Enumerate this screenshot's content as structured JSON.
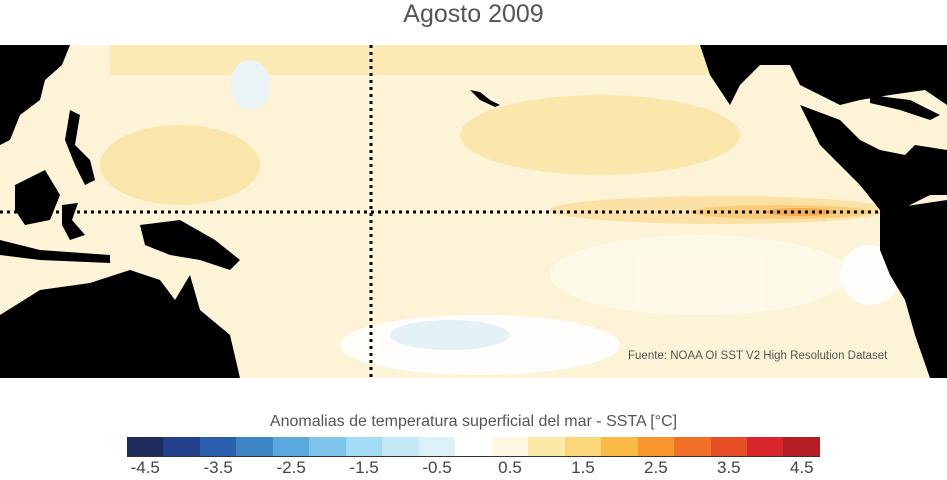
{
  "title": "Agosto 2009",
  "source": "Fuente: NOAA OI SST V2 High Resolution Dataset",
  "colorbar": {
    "label": "Anomalias de temperatura superficial del mar - SSTA  [°C]",
    "bin_centers": [
      -4.5,
      -4,
      -3.5,
      -3,
      -2.5,
      -2,
      -1.5,
      -1,
      -0.5,
      0,
      0.5,
      1,
      1.5,
      2,
      2.5,
      3,
      3.5,
      4,
      4.5
    ],
    "colors": [
      "#1f2d5c",
      "#22418a",
      "#2a5fae",
      "#3f84c4",
      "#5aa9dc",
      "#7ec3ea",
      "#a5dcf5",
      "#c5e8f6",
      "#ddf1f8",
      "#ffffff",
      "#fef8e2",
      "#fbe9a8",
      "#fad77a",
      "#fbb945",
      "#f8972e",
      "#f27129",
      "#e44d26",
      "#d9262a",
      "#b31d23"
    ],
    "tick_labels": [
      "-4.5",
      "-3.5",
      "-2.5",
      "-1.5",
      "-0.5",
      "0.5",
      "1.5",
      "2.5",
      "3.5",
      "4.5"
    ]
  }
}
